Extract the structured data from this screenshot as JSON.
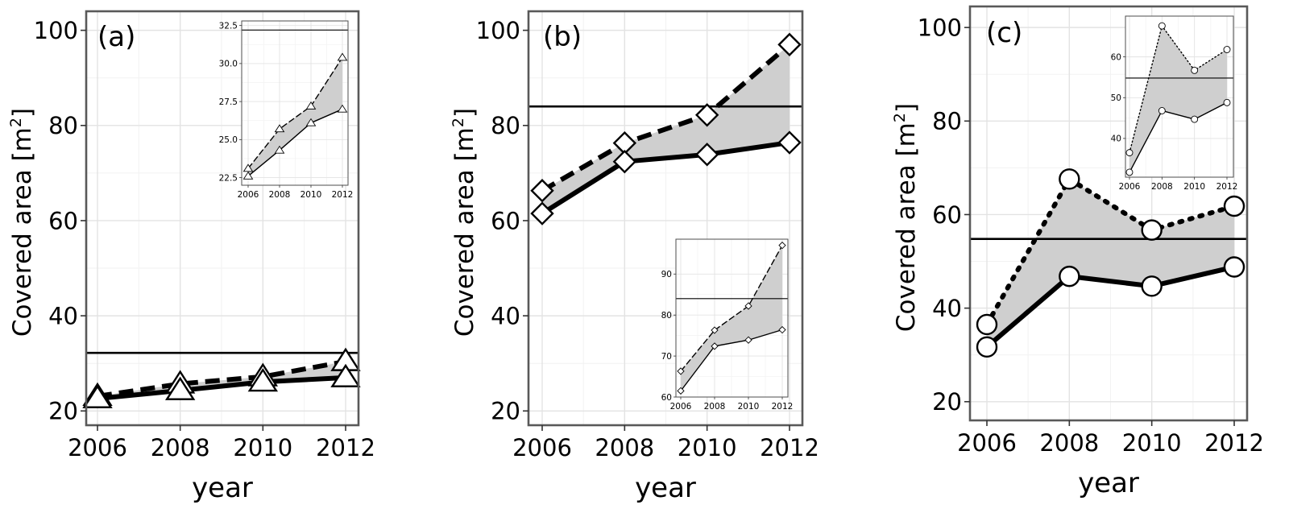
{
  "chart_data": [
    {
      "type": "line",
      "panel_label": "(a)",
      "xlabel": "year",
      "ylabel": "Covered area [m",
      "ylabel_sup": "2",
      "ylabel_close": "]",
      "x": [
        2006,
        2008,
        2010,
        2012
      ],
      "xticks": [
        "2006",
        "2008",
        "2010",
        "2012"
      ],
      "ylim": [
        17,
        104
      ],
      "yticks": [
        "20",
        "40",
        "60",
        "80",
        "100"
      ],
      "marker": "triangle",
      "reference_line": 32.2,
      "series": [
        {
          "style": "dashed",
          "values": [
            23.1,
            25.7,
            27.2,
            30.4
          ]
        },
        {
          "style": "solid",
          "values": [
            22.6,
            24.3,
            26.1,
            27.0
          ]
        }
      ],
      "inset": {
        "xlim": [
          2006,
          2012
        ],
        "ylim": [
          22.0,
          32.8
        ],
        "xticks": [
          "2006",
          "2008",
          "2010",
          "2012"
        ],
        "yticks": [
          "22.5",
          "25.0",
          "27.5",
          "30.0",
          "32.5"
        ]
      }
    },
    {
      "type": "line",
      "panel_label": "(b)",
      "xlabel": "year",
      "ylabel": "Covered area [m",
      "ylabel_sup": "2",
      "ylabel_close": "]",
      "x": [
        2006,
        2008,
        2010,
        2012
      ],
      "xticks": [
        "2006",
        "2008",
        "2010",
        "2012"
      ],
      "ylim": [
        17,
        104
      ],
      "yticks": [
        "20",
        "40",
        "60",
        "80",
        "100"
      ],
      "marker": "diamond",
      "reference_line": 84,
      "series": [
        {
          "style": "dashed",
          "values": [
            66.3,
            76.3,
            82.2,
            97.0
          ]
        },
        {
          "style": "solid",
          "values": [
            61.5,
            72.4,
            73.9,
            76.4
          ]
        }
      ],
      "inset": {
        "xlim": [
          2006,
          2012
        ],
        "ylim": [
          60,
          98.5
        ],
        "xticks": [
          "2006",
          "2008",
          "2010",
          "2012"
        ],
        "yticks": [
          "60",
          "70",
          "80",
          "90"
        ]
      }
    },
    {
      "type": "line",
      "panel_label": "(c)",
      "xlabel": "year",
      "ylabel": "Covered area [m",
      "ylabel_sup": "2",
      "ylabel_close": "]",
      "x": [
        2006,
        2008,
        2010,
        2012
      ],
      "xticks": [
        "2006",
        "2008",
        "2010",
        "2012"
      ],
      "ylim": [
        16,
        104.5
      ],
      "yticks": [
        "20",
        "40",
        "60",
        "80",
        "100"
      ],
      "marker": "circle",
      "reference_line": 54.8,
      "series": [
        {
          "style": "dotted",
          "values": [
            36.5,
            67.6,
            56.7,
            61.8
          ]
        },
        {
          "style": "solid",
          "values": [
            31.7,
            46.8,
            44.7,
            48.8
          ]
        }
      ],
      "inset": {
        "xlim": [
          2006,
          2012
        ],
        "ylim": [
          30.5,
          70
        ],
        "xticks": [
          "2006",
          "2008",
          "2010",
          "2012"
        ],
        "yticks": [
          "40",
          "50",
          "60"
        ]
      }
    }
  ]
}
